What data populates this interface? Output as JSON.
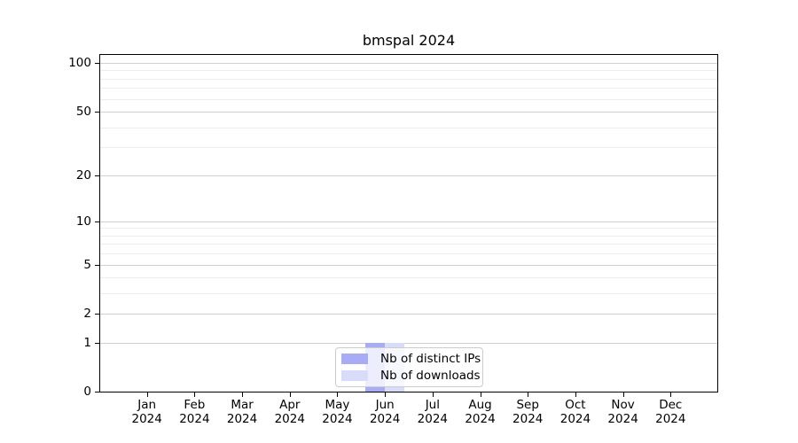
{
  "chart_data": {
    "type": "bar",
    "title": "bmspal 2024",
    "categories": [
      "Jan",
      "Feb",
      "Mar",
      "Apr",
      "May",
      "Jun",
      "Jul",
      "Aug",
      "Sep",
      "Oct",
      "Nov",
      "Dec"
    ],
    "x_year_label": "2024",
    "series": [
      {
        "name": "Nb of distinct IPs",
        "color": "#a8acf4",
        "values": [
          0,
          0,
          0,
          0,
          0,
          1,
          0,
          0,
          0,
          0,
          0,
          0
        ]
      },
      {
        "name": "Nb of downloads",
        "color": "#d9dcf9",
        "values": [
          0,
          0,
          0,
          0,
          0,
          1,
          0,
          0,
          0,
          0,
          0,
          0
        ]
      }
    ],
    "y_scale": "log1p",
    "y_ticks": [
      0,
      1,
      2,
      5,
      10,
      20,
      50,
      100
    ],
    "y_minor_ticks": [
      3,
      4,
      6,
      7,
      8,
      9,
      30,
      40,
      60,
      70,
      80,
      90
    ],
    "ylim": [
      0,
      113
    ],
    "grid": "horizontal-only",
    "legend_position": "bottom-center"
  },
  "colors": {
    "axis": "#000000",
    "major_grid": "#d0d0d0",
    "minor_grid": "#ececec",
    "legend_border": "#cccccc",
    "background": "#ffffff"
  }
}
